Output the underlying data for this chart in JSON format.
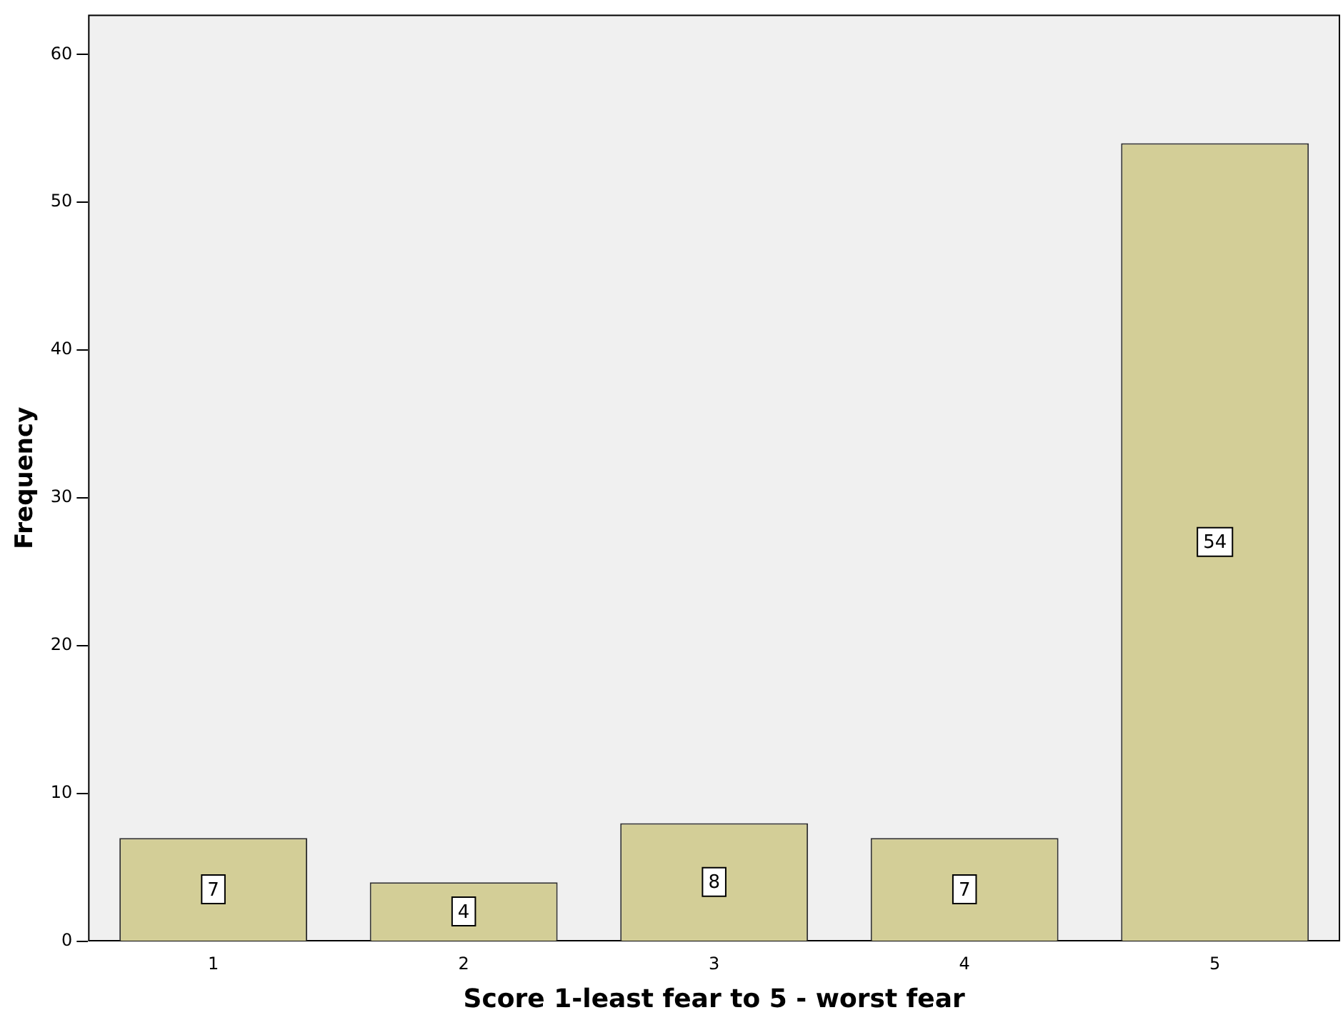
{
  "chart_data": {
    "type": "bar",
    "xlabel": "Score 1-least fear to 5 - worst fear",
    "ylabel": "Frequency",
    "categories": [
      "1",
      "2",
      "3",
      "4",
      "5"
    ],
    "values": [
      7,
      4,
      8,
      7,
      54
    ],
    "color": "#d3ce97",
    "ylim": [
      0,
      62.7
    ],
    "yticks": [
      0,
      10,
      20,
      30,
      40,
      50,
      60
    ],
    "grid": false,
    "legend": false,
    "data_labels": true
  }
}
